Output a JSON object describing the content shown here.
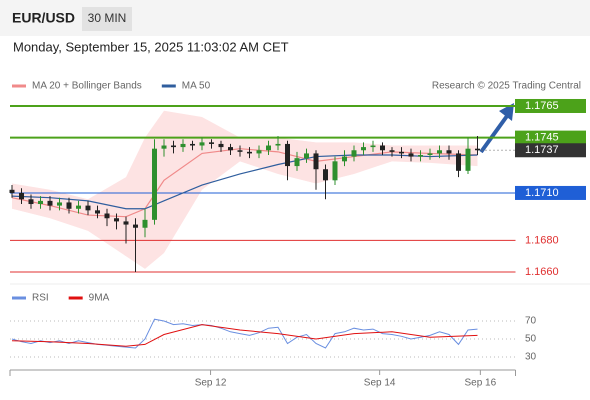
{
  "header": {
    "symbol": "EUR/USD",
    "timeframe": "30 MIN",
    "datetime": "Monday, September 15, 2025 11:03:02 AM CET"
  },
  "chart_data": {
    "type": "candlestick",
    "source": "Research © 2025 Trading Central",
    "xlim": [
      0,
      53
    ],
    "ylim": [
      1.1654,
      1.1771
    ],
    "xticks": [
      {
        "value": 20.9,
        "label": "Sep 12"
      },
      {
        "value": 38.7,
        "label": "Sep 14"
      },
      {
        "value": 49.3,
        "label": "Sep 16"
      }
    ],
    "up_color": "#2e8f2e",
    "down_color": "#222222",
    "open": [
      1.1712,
      1.171,
      1.1706,
      1.1703,
      1.1705,
      1.1702,
      1.1704,
      1.17,
      1.1702,
      1.1699,
      1.1697,
      1.1694,
      1.1692,
      1.169,
      1.1688,
      1.1693,
      1.1738,
      1.174,
      1.1739,
      1.1741,
      1.174,
      1.1742,
      1.1741,
      1.1739,
      1.1737,
      1.1736,
      1.1735,
      1.1737,
      1.174,
      1.1741,
      1.1727,
      1.1732,
      1.1735,
      1.1725,
      1.1718,
      1.173,
      1.1733,
      1.1737,
      1.1739,
      1.174,
      1.1737,
      1.1736,
      1.1735,
      1.1733,
      1.1734,
      1.1735,
      1.1737,
      1.1735,
      1.1724,
      1.1738
    ],
    "high": [
      1.1715,
      1.1713,
      1.1709,
      1.1708,
      1.1708,
      1.1707,
      1.1707,
      1.1705,
      1.1705,
      1.1702,
      1.17,
      1.1697,
      1.1695,
      1.1694,
      1.17,
      1.1744,
      1.1744,
      1.1743,
      1.1744,
      1.1743,
      1.1745,
      1.1744,
      1.1743,
      1.1741,
      1.174,
      1.1739,
      1.174,
      1.1743,
      1.1746,
      1.1743,
      1.1736,
      1.1738,
      1.1737,
      1.1728,
      1.1733,
      1.1737,
      1.174,
      1.1742,
      1.1743,
      1.1742,
      1.1739,
      1.1739,
      1.1738,
      1.1737,
      1.1738,
      1.174,
      1.174,
      1.1737,
      1.1745,
      1.1746
    ],
    "low": [
      1.1707,
      1.1703,
      1.17,
      1.17,
      1.1699,
      1.1699,
      1.1697,
      1.1697,
      1.1696,
      1.1694,
      1.1689,
      1.1687,
      1.1678,
      1.166,
      1.1682,
      1.169,
      1.1733,
      1.1735,
      1.1736,
      1.1737,
      1.1737,
      1.1738,
      1.1736,
      1.1734,
      1.1733,
      1.1732,
      1.1732,
      1.1734,
      1.1737,
      1.1718,
      1.1724,
      1.1729,
      1.1712,
      1.1706,
      1.1715,
      1.1727,
      1.173,
      1.1734,
      1.1736,
      1.1734,
      1.1733,
      1.1732,
      1.173,
      1.173,
      1.1731,
      1.1732,
      1.1731,
      1.172,
      1.1722,
      1.1734
    ],
    "close": [
      1.171,
      1.1706,
      1.1703,
      1.1705,
      1.1702,
      1.1704,
      1.17,
      1.1702,
      1.1699,
      1.1697,
      1.1694,
      1.1692,
      1.169,
      1.1688,
      1.1693,
      1.1738,
      1.174,
      1.1739,
      1.1741,
      1.174,
      1.1742,
      1.1741,
      1.1739,
      1.1737,
      1.1736,
      1.1735,
      1.1737,
      1.174,
      1.1741,
      1.1727,
      1.1732,
      1.1735,
      1.1725,
      1.1718,
      1.173,
      1.1733,
      1.1737,
      1.1739,
      1.174,
      1.1737,
      1.1736,
      1.1735,
      1.1733,
      1.1734,
      1.1735,
      1.1737,
      1.1735,
      1.1724,
      1.1738,
      1.1737
    ],
    "indicators": {
      "x": [
        0,
        4,
        8,
        12,
        14,
        16,
        20,
        24,
        28,
        32,
        36,
        40,
        44,
        49
      ],
      "series": [
        {
          "name": "MA 20 + Bollinger Bands",
          "color": "#f08a8a",
          "band_color": "#fde3e3",
          "values": [
            1.1707,
            1.1702,
            1.1696,
            1.1695,
            1.17,
            1.1718,
            1.1735,
            1.1738,
            1.1736,
            1.173,
            1.1733,
            1.1736,
            1.1735,
            1.1734
          ],
          "upper": [
            1.1716,
            1.1712,
            1.1706,
            1.172,
            1.1745,
            1.1762,
            1.1758,
            1.1745,
            1.1745,
            1.1742,
            1.1742,
            1.174,
            1.174,
            1.174
          ],
          "lower": [
            1.17,
            1.1694,
            1.1686,
            1.167,
            1.1662,
            1.1672,
            1.1712,
            1.173,
            1.1722,
            1.1716,
            1.1722,
            1.173,
            1.1729,
            1.1727
          ]
        },
        {
          "name": "MA 50",
          "color": "#2f5e9e",
          "values": [
            1.1708,
            1.1707,
            1.1705,
            1.17,
            1.17,
            1.1705,
            1.1715,
            1.1722,
            1.1728,
            1.1733,
            1.1734,
            1.1734,
            1.1733,
            1.1734
          ]
        }
      ]
    },
    "levels": [
      {
        "value": 1.1765,
        "label": "1.1765",
        "color": "#4ca21a",
        "kind": "box"
      },
      {
        "value": 1.1745,
        "label": "1.1745",
        "color": "#4ca21a",
        "kind": "box"
      },
      {
        "value": 1.1737,
        "label": "1.1737",
        "color": "#333333",
        "kind": "current"
      },
      {
        "value": 1.171,
        "label": "1.1710",
        "color": "#1f5fd6",
        "kind": "box"
      },
      {
        "value": 1.168,
        "label": "1.1680",
        "color": "#e03030",
        "kind": "text"
      },
      {
        "value": 1.166,
        "label": "1.1660",
        "color": "#e03030",
        "kind": "text"
      }
    ],
    "rsi": {
      "ylim": [
        15,
        85
      ],
      "yticks": [
        70,
        50,
        30
      ],
      "series": [
        {
          "name": "RSI",
          "color": "#6a8fe0",
          "values": [
            50,
            47,
            45,
            48,
            46,
            48,
            45,
            48,
            46,
            44,
            43,
            42,
            41,
            40,
            50,
            72,
            70,
            66,
            67,
            65,
            66,
            65,
            62,
            58,
            56,
            54,
            57,
            62,
            63,
            45,
            52,
            55,
            45,
            40,
            56,
            58,
            62,
            60,
            61,
            56,
            55,
            53,
            50,
            52,
            54,
            58,
            55,
            44,
            60,
            61
          ]
        },
        {
          "name": "9MA",
          "color": "#e01010",
          "x": [
            0,
            4,
            8,
            12,
            14,
            16,
            20,
            24,
            28,
            32,
            36,
            40,
            44,
            49
          ],
          "values": [
            48,
            47,
            45,
            42,
            44,
            55,
            66,
            60,
            56,
            50,
            56,
            58,
            52,
            54
          ]
        }
      ]
    }
  }
}
